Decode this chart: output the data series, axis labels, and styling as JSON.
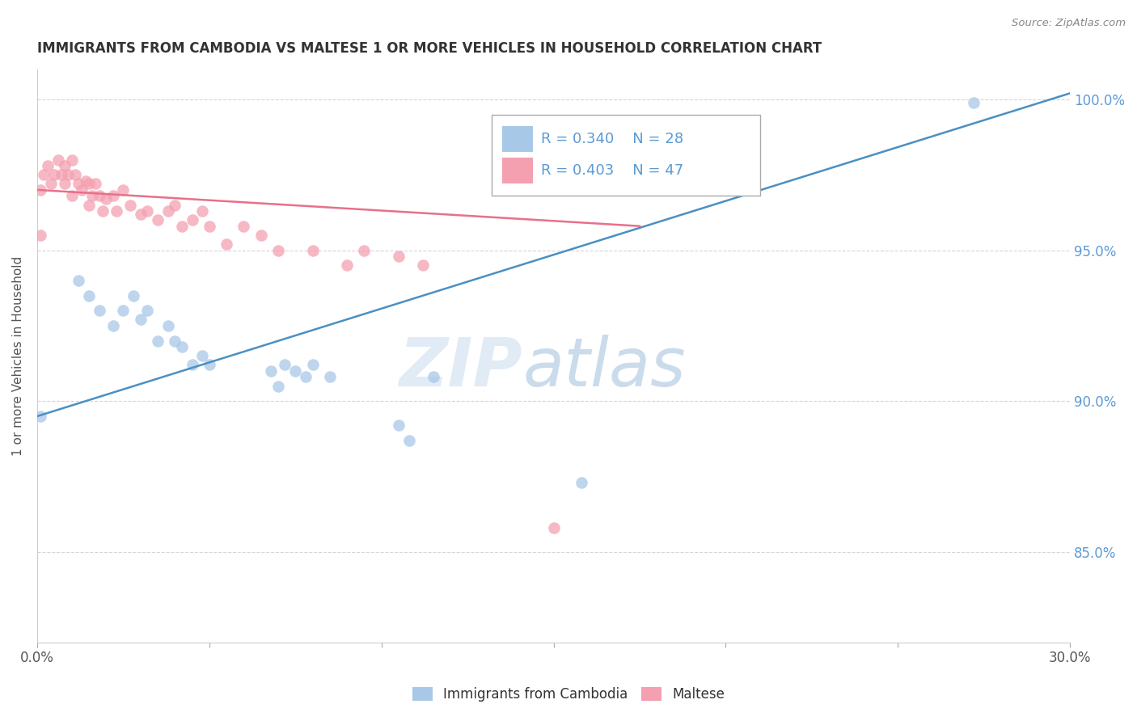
{
  "title": "IMMIGRANTS FROM CAMBODIA VS MALTESE 1 OR MORE VEHICLES IN HOUSEHOLD CORRELATION CHART",
  "source": "Source: ZipAtlas.com",
  "ylabel": "1 or more Vehicles in Household",
  "xlim": [
    0.0,
    0.3
  ],
  "ylim": [
    0.82,
    1.01
  ],
  "color_blue": "#A8C8E8",
  "color_pink": "#F4A0B0",
  "line_blue": "#4A90C4",
  "line_pink": "#E8708A",
  "watermark_zip": "ZIP",
  "watermark_atlas": "atlas",
  "legend_r1": "R = 0.340",
  "legend_n1": "N = 28",
  "legend_r2": "R = 0.403",
  "legend_n2": "N = 47",
  "blue_line_x": [
    0.0,
    0.3
  ],
  "blue_line_y": [
    0.895,
    1.002
  ],
  "pink_line_x": [
    0.0,
    0.175
  ],
  "pink_line_y": [
    0.97,
    0.958
  ],
  "blue_points_x": [
    0.001,
    0.012,
    0.015,
    0.018,
    0.022,
    0.025,
    0.028,
    0.03,
    0.032,
    0.035,
    0.038,
    0.04,
    0.042,
    0.045,
    0.048,
    0.05,
    0.068,
    0.07,
    0.072,
    0.075,
    0.078,
    0.08,
    0.085,
    0.105,
    0.108,
    0.115,
    0.158,
    0.272
  ],
  "blue_points_y": [
    0.895,
    0.94,
    0.935,
    0.93,
    0.925,
    0.93,
    0.935,
    0.927,
    0.93,
    0.92,
    0.925,
    0.92,
    0.918,
    0.912,
    0.915,
    0.912,
    0.91,
    0.905,
    0.912,
    0.91,
    0.908,
    0.912,
    0.908,
    0.892,
    0.887,
    0.908,
    0.873,
    0.999
  ],
  "pink_points_x": [
    0.001,
    0.002,
    0.003,
    0.004,
    0.005,
    0.006,
    0.007,
    0.008,
    0.008,
    0.009,
    0.01,
    0.01,
    0.011,
    0.012,
    0.013,
    0.014,
    0.015,
    0.015,
    0.016,
    0.017,
    0.018,
    0.019,
    0.02,
    0.022,
    0.023,
    0.025,
    0.027,
    0.03,
    0.032,
    0.035,
    0.038,
    0.04,
    0.042,
    0.045,
    0.048,
    0.05,
    0.055,
    0.06,
    0.065,
    0.07,
    0.08,
    0.09,
    0.095,
    0.105,
    0.112,
    0.15,
    0.001
  ],
  "pink_points_y": [
    0.97,
    0.975,
    0.978,
    0.972,
    0.975,
    0.98,
    0.975,
    0.978,
    0.972,
    0.975,
    0.98,
    0.968,
    0.975,
    0.972,
    0.97,
    0.973,
    0.972,
    0.965,
    0.968,
    0.972,
    0.968,
    0.963,
    0.967,
    0.968,
    0.963,
    0.97,
    0.965,
    0.962,
    0.963,
    0.96,
    0.963,
    0.965,
    0.958,
    0.96,
    0.963,
    0.958,
    0.952,
    0.958,
    0.955,
    0.95,
    0.95,
    0.945,
    0.95,
    0.948,
    0.945,
    0.858,
    0.955
  ]
}
